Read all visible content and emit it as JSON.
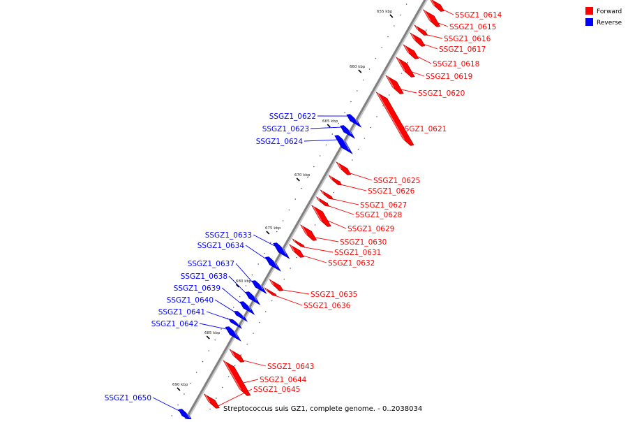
{
  "colors": {
    "forward": "#ff0000",
    "reverse": "#0000ff",
    "axis": "#808080",
    "text": "#000000"
  },
  "legend": {
    "forward_label": "Forward",
    "reverse_label": "Reverse"
  },
  "caption": "Streptococcus suis GZ1, complete genome. - 0..2038034",
  "ticks": [
    {
      "label": "655 kbp"
    },
    {
      "label": "660 kbp"
    },
    {
      "label": "665 kbp"
    },
    {
      "label": "670 kbp"
    },
    {
      "label": "675 kbp"
    },
    {
      "label": "680 kbp"
    },
    {
      "label": "685 kbp"
    },
    {
      "label": "690 kbp"
    }
  ],
  "genes": [
    {
      "name": "SSGZ1_0614",
      "strand": "forward"
    },
    {
      "name": "SSGZ1_0615",
      "strand": "forward"
    },
    {
      "name": "SSGZ1_0616",
      "strand": "forward"
    },
    {
      "name": "SSGZ1_0617",
      "strand": "forward"
    },
    {
      "name": "SSGZ1_0618",
      "strand": "forward"
    },
    {
      "name": "SSGZ1_0619",
      "strand": "forward"
    },
    {
      "name": "SSGZ1_0620",
      "strand": "forward"
    },
    {
      "name": "SSGZ1_0621",
      "strand": "forward"
    },
    {
      "name": "SSGZ1_0622",
      "strand": "reverse"
    },
    {
      "name": "SSGZ1_0623",
      "strand": "reverse"
    },
    {
      "name": "SSGZ1_0624",
      "strand": "reverse"
    },
    {
      "name": "SSGZ1_0625",
      "strand": "forward"
    },
    {
      "name": "SSGZ1_0626",
      "strand": "forward"
    },
    {
      "name": "SSGZ1_0627",
      "strand": "forward"
    },
    {
      "name": "SSGZ1_0628",
      "strand": "forward"
    },
    {
      "name": "SSGZ1_0629",
      "strand": "forward"
    },
    {
      "name": "SSGZ1_0630",
      "strand": "forward"
    },
    {
      "name": "SSGZ1_0631",
      "strand": "forward"
    },
    {
      "name": "SSGZ1_0632",
      "strand": "forward"
    },
    {
      "name": "SSGZ1_0633",
      "strand": "reverse"
    },
    {
      "name": "SSGZ1_0634",
      "strand": "reverse"
    },
    {
      "name": "SSGZ1_0635",
      "strand": "forward"
    },
    {
      "name": "SSGZ1_0636",
      "strand": "forward"
    },
    {
      "name": "SSGZ1_0637",
      "strand": "reverse"
    },
    {
      "name": "SSGZ1_0638",
      "strand": "reverse"
    },
    {
      "name": "SSGZ1_0639",
      "strand": "reverse"
    },
    {
      "name": "SSGZ1_0640",
      "strand": "reverse"
    },
    {
      "name": "SSGZ1_0641",
      "strand": "reverse"
    },
    {
      "name": "SSGZ1_0642",
      "strand": "reverse"
    },
    {
      "name": "SSGZ1_0643",
      "strand": "forward"
    },
    {
      "name": "SSGZ1_0644",
      "strand": "forward"
    },
    {
      "name": "SSGZ1_0645",
      "strand": "forward"
    },
    {
      "name": "SSGZ1_0650",
      "strand": "reverse"
    }
  ]
}
